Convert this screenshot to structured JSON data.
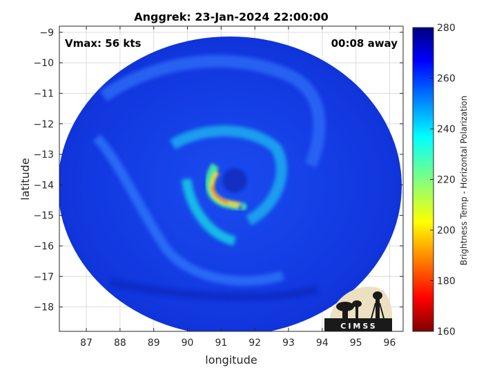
{
  "chart_data": {
    "type": "heatmap",
    "title": "Anggrek: 23-Jan-2024 22:00:00",
    "xlabel": "longitude",
    "ylabel": "latitude",
    "xlim": [
      86.2,
      96.4
    ],
    "ylim": [
      -18.8,
      -8.8
    ],
    "x_ticks": [
      87,
      88,
      89,
      90,
      91,
      92,
      93,
      94,
      95,
      96
    ],
    "y_ticks": [
      -9,
      -10,
      -11,
      -12,
      -13,
      -14,
      -15,
      -16,
      -17,
      -18
    ],
    "grid": true,
    "annotations": {
      "vmax": "Vmax: 56 kts",
      "timing": "00:08 away"
    },
    "colorbar": {
      "label": "Brightness Temp - Horizontal Polarization",
      "range": [
        160,
        280
      ],
      "ticks": [
        160,
        180,
        200,
        220,
        240,
        260,
        280
      ],
      "colormap": "jet"
    },
    "storm_center": {
      "lon": 91.0,
      "lat": -13.9
    },
    "logo": {
      "text": "CIMSS"
    }
  }
}
